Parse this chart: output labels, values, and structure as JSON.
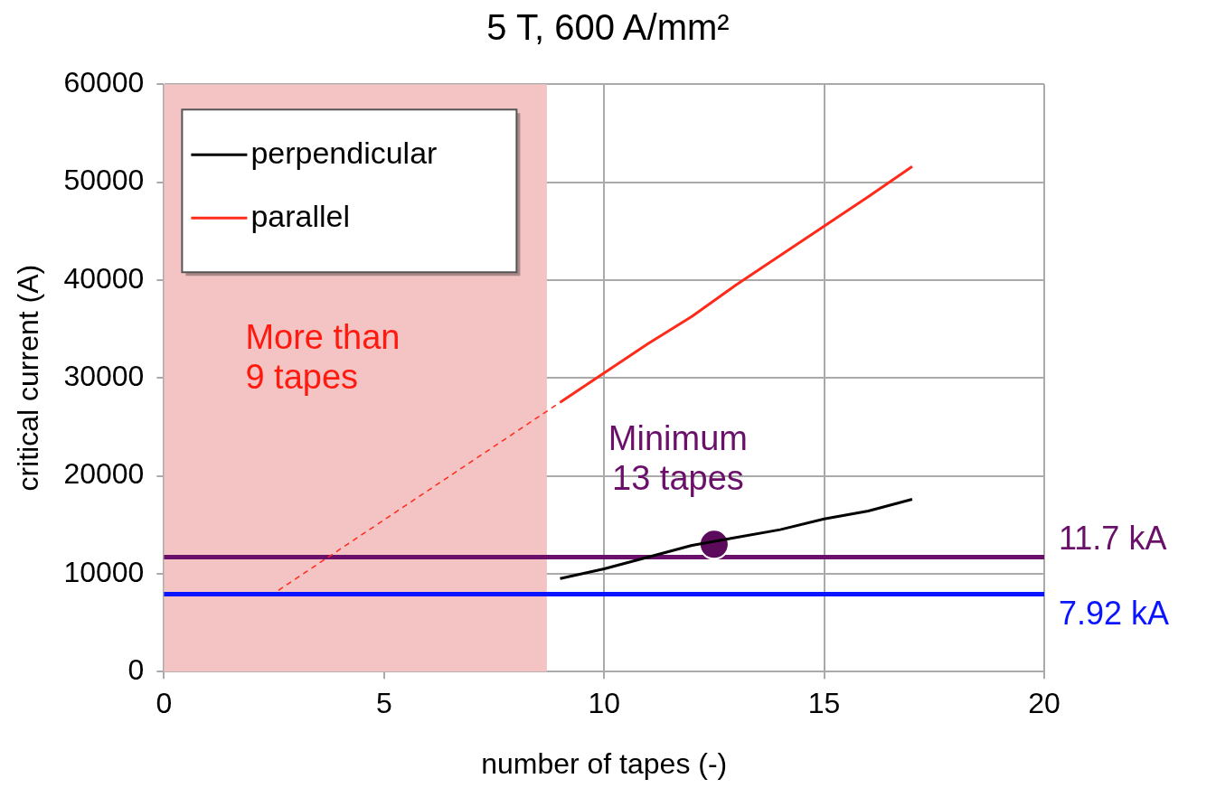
{
  "chart_data": {
    "type": "line",
    "title": "5 T, 600 A/mm²",
    "xlabel": "number of tapes (-)",
    "ylabel": "critical current (A)",
    "xlim": [
      0,
      20
    ],
    "xticks": [
      0,
      5,
      10,
      15,
      20
    ],
    "ylim": [
      0,
      60000
    ],
    "yticks": [
      0,
      10000,
      20000,
      30000,
      40000,
      50000,
      60000
    ],
    "grid": true,
    "legend": "top left",
    "series": [
      {
        "name": "perpendicular",
        "color": "#000000",
        "x": [
          9,
          10,
          11,
          12,
          13,
          14,
          15,
          16,
          17
        ],
        "values": [
          9500,
          10500,
          11700,
          12900,
          13700,
          14500,
          15600,
          16400,
          17600
        ]
      },
      {
        "name": "parallel",
        "color": "#ff2a1a",
        "x": [
          9,
          10,
          11,
          12,
          13,
          14,
          15,
          16,
          17
        ],
        "values": [
          27500,
          30500,
          33500,
          36300,
          39500,
          42500,
          45500,
          48500,
          51600
        ]
      },
      {
        "color": "#ff2a1a",
        "line_style": "dashed",
        "x": [
          2.6,
          9
        ],
        "values": [
          8300,
          27500
        ]
      },
      {
        "type": "scatter",
        "marker": "circle",
        "color": "#5c0a5c",
        "x": [
          12.5
        ],
        "values": [
          13000
        ]
      }
    ],
    "bands": [
      {
        "axis": "x",
        "from": 0,
        "to": 8.7,
        "label": "More than\n9 tapes",
        "color": "#f4c4c4"
      }
    ],
    "ref_lines": [
      {
        "axis": "y",
        "value": 11700,
        "label": "11.7 kA",
        "color": "#6a106a"
      },
      {
        "axis": "y",
        "value": 7920,
        "label": "7.92 kA",
        "color": "#0a14ff"
      }
    ],
    "annotations": [
      {
        "text": "Minimum\n13 tapes",
        "x": 12.5,
        "y": 13000
      }
    ]
  }
}
